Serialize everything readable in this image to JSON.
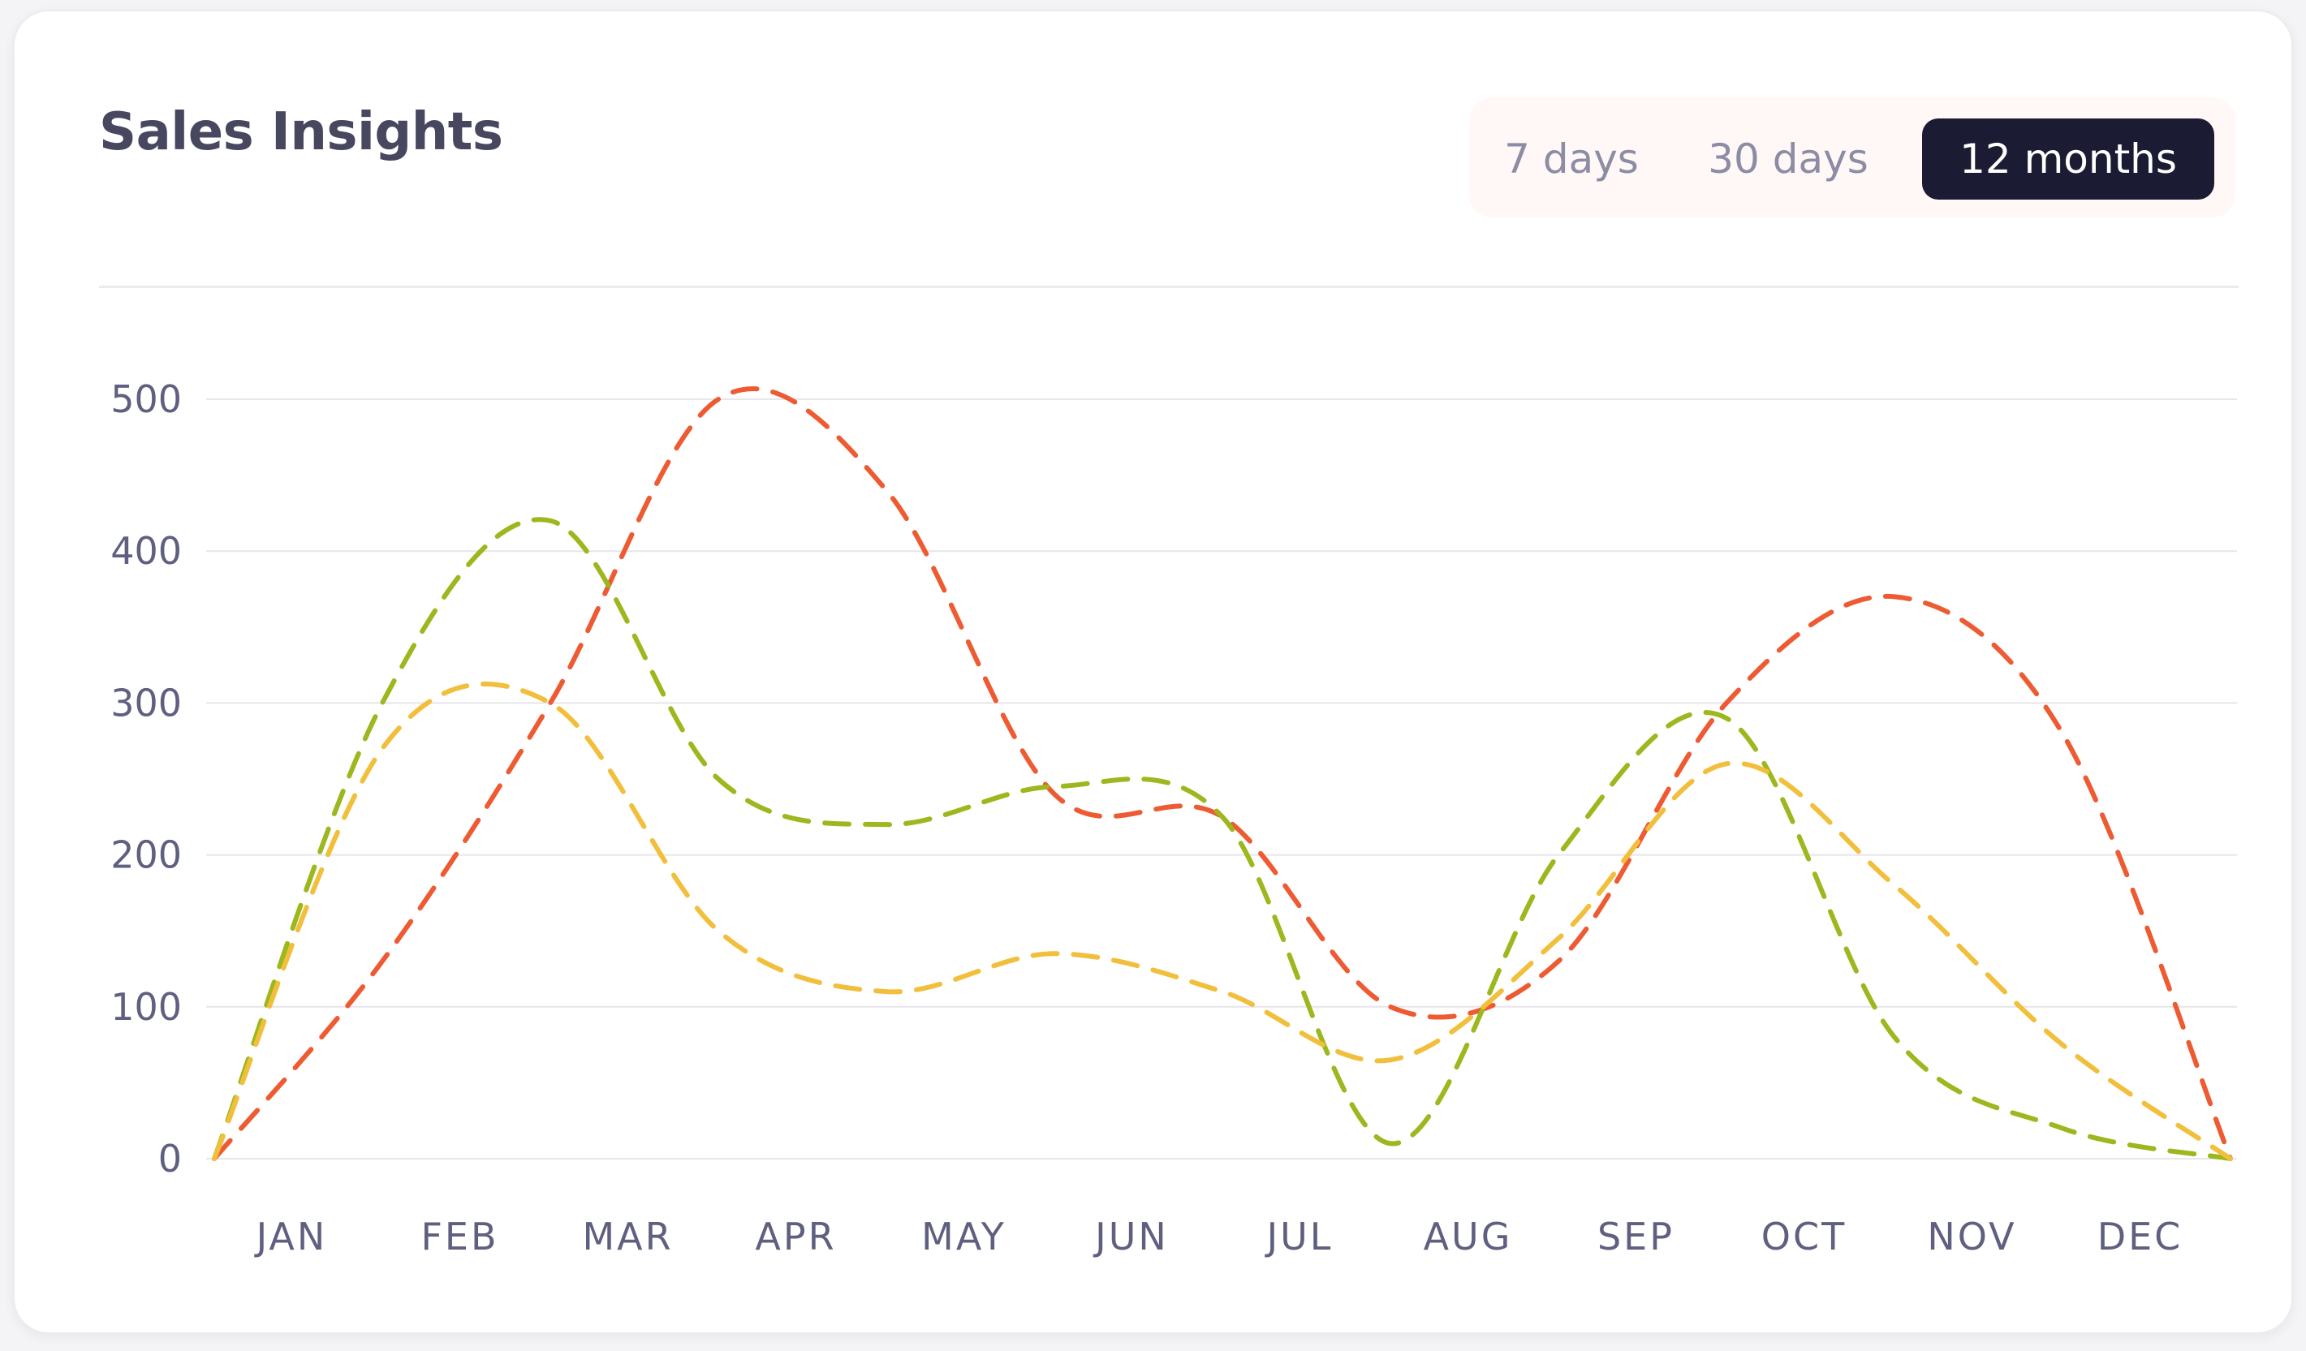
{
  "header": {
    "title": "Sales Insights"
  },
  "range_selector": {
    "options": [
      "7 days",
      "30 days",
      "12 months"
    ],
    "selected": "12 months"
  },
  "colors": {
    "series_red": "#ee5a32",
    "series_green": "#9cb81e",
    "series_yellow": "#f2bf3c",
    "active_button": "#1b1b33",
    "grid": "#e6e6ec"
  },
  "chart_data": {
    "type": "line",
    "curve": "smooth",
    "line_style": "dashed",
    "categories": [
      "JAN",
      "FEB",
      "MAR",
      "APR",
      "MAY",
      "JUN",
      "JUL",
      "AUG",
      "SEP",
      "OCT",
      "NOV",
      "DEC"
    ],
    "ylim": [
      0,
      500
    ],
    "yticks": [
      0,
      100,
      200,
      300,
      400,
      500
    ],
    "grid": true,
    "legend": "none",
    "series": [
      {
        "color": "#ee5a32",
        "points": [
          [
            0,
            0
          ],
          [
            1,
            130
          ],
          [
            2,
            300
          ],
          [
            3,
            500
          ],
          [
            4,
            440
          ],
          [
            5,
            240
          ],
          [
            6,
            225
          ],
          [
            7,
            100
          ],
          [
            8,
            130
          ],
          [
            9,
            300
          ],
          [
            10,
            370
          ],
          [
            11,
            280
          ],
          [
            12,
            0
          ]
        ]
      },
      {
        "color": "#9cb81e",
        "points": [
          [
            0,
            0
          ],
          [
            1,
            300
          ],
          [
            2,
            420
          ],
          [
            3,
            250
          ],
          [
            4,
            220
          ],
          [
            5,
            245
          ],
          [
            6,
            225
          ],
          [
            7,
            10
          ],
          [
            8,
            200
          ],
          [
            9,
            290
          ],
          [
            10,
            80
          ],
          [
            11,
            20
          ],
          [
            12,
            0
          ]
        ]
      },
      {
        "color": "#f2bf3c",
        "points": [
          [
            0,
            0
          ],
          [
            1,
            270
          ],
          [
            2,
            300
          ],
          [
            3,
            150
          ],
          [
            4,
            110
          ],
          [
            5,
            135
          ],
          [
            6,
            110
          ],
          [
            7,
            65
          ],
          [
            8,
            145
          ],
          [
            9,
            260
          ],
          [
            10,
            180
          ],
          [
            11,
            75
          ],
          [
            12,
            0
          ]
        ]
      }
    ]
  }
}
